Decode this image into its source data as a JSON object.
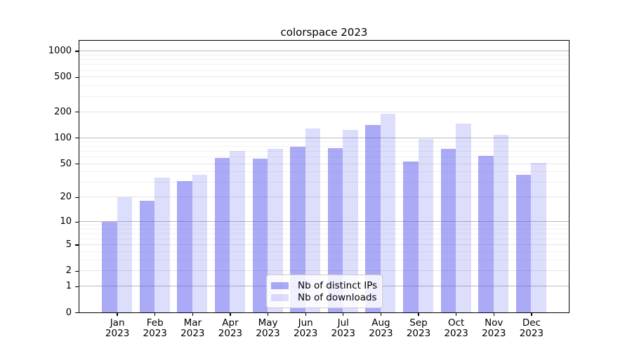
{
  "title": "colorspace 2023",
  "colors": {
    "bar_base": "#5555EF",
    "axis": "#000000",
    "text": "#000000",
    "grid_decade": "#b9b9b9",
    "grid_labeled": "#e3e3e3",
    "grid_minor": "#f1f1f1",
    "legend_border": "#cccccc",
    "legend_bg": "#ffffff"
  },
  "legend": {
    "items": [
      {
        "label": "Nb of distinct IPs"
      },
      {
        "label": "Nb of downloads"
      }
    ]
  },
  "chart_data": {
    "type": "bar",
    "title": "colorspace 2023",
    "yscale": "log1p",
    "categories": [
      "Jan",
      "Feb",
      "Mar",
      "Apr",
      "May",
      "Jun",
      "Jul",
      "Aug",
      "Sep",
      "Oct",
      "Nov",
      "Dec"
    ],
    "year_label": "2023",
    "series": [
      {
        "name": "Nb of distinct IPs",
        "color": "#5555EF",
        "alpha": 0.5,
        "values": [
          10,
          18,
          31,
          58,
          57,
          78,
          76,
          140,
          53,
          74,
          62,
          37
        ]
      },
      {
        "name": "Nb of downloads",
        "color": "#5555EF",
        "alpha": 0.2,
        "values": [
          20,
          34,
          37,
          70,
          75,
          128,
          123,
          188,
          96,
          146,
          109,
          51
        ]
      }
    ],
    "y_ticks": [
      0,
      1,
      2,
      5,
      10,
      20,
      50,
      100,
      200,
      500,
      1000
    ],
    "ylim": [
      0,
      1310
    ],
    "xlabel": "",
    "ylabel": "",
    "grid": true,
    "legend_position": "inside-bottom-center"
  }
}
